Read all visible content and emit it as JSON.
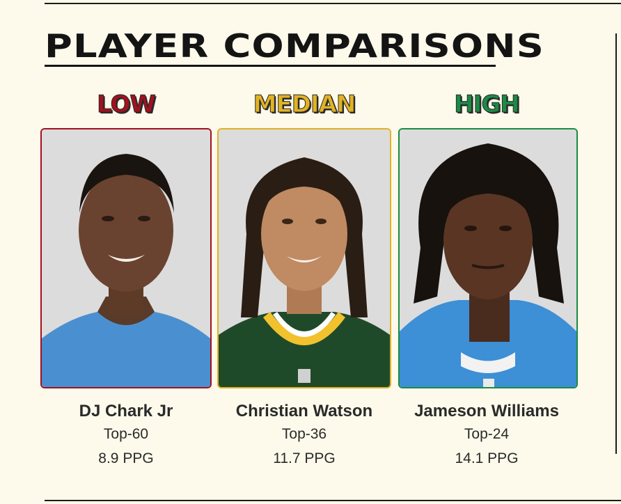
{
  "title": "PLAYER COMPARISONS",
  "colors": {
    "low": "#a3101e",
    "median": "#e1b224",
    "high": "#1b8a45",
    "background": "#fdfaeb"
  },
  "players": [
    {
      "tier": "LOW",
      "name": "DJ Chark Jr",
      "rank": "Top-60",
      "ppg": "8.9 PPG",
      "photo": "player-headshot-blue-jersey"
    },
    {
      "tier": "MEDIAN",
      "name": "Christian Watson",
      "rank": "Top-36",
      "ppg": "11.7 PPG",
      "photo": "player-headshot-green-jersey"
    },
    {
      "tier": "HIGH",
      "name": "Jameson Williams",
      "rank": "Top-24",
      "ppg": "14.1 PPG",
      "photo": "player-headshot-blue-jersey"
    }
  ]
}
